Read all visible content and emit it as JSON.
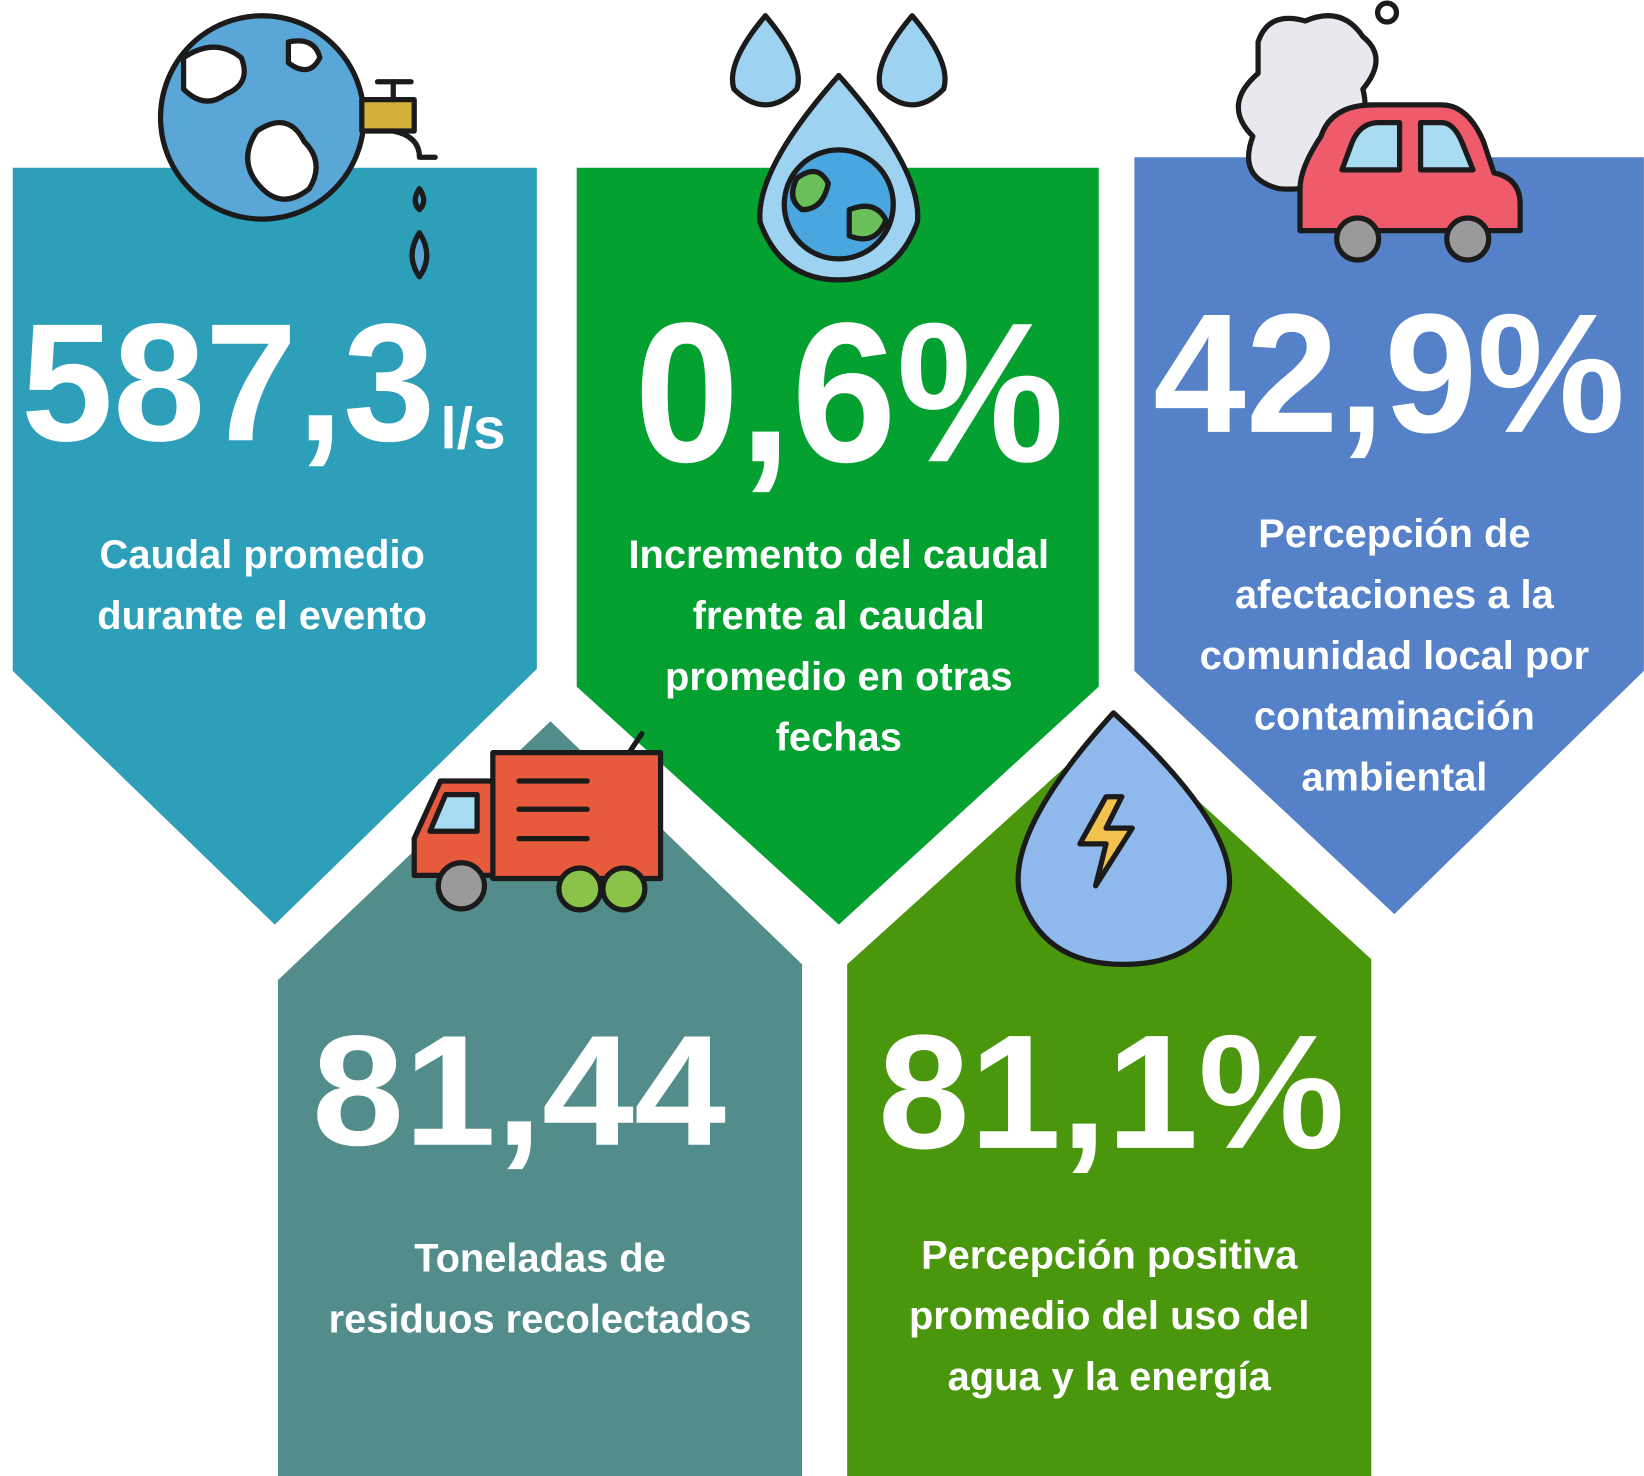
{
  "cards": [
    {
      "value": "587,3",
      "unit": "l/s",
      "description": [
        "Caudal promedio",
        "durante el evento"
      ]
    },
    {
      "value": "0,6%",
      "description": [
        "Incremento del caudal",
        "frente al caudal",
        "promedio en otras",
        "fechas"
      ]
    },
    {
      "value": "42,9%",
      "description": [
        "Percepción de",
        "afectaciones a la",
        "comunidad local por",
        "contaminación",
        "ambiental"
      ]
    },
    {
      "value": "81,44",
      "description": [
        "Toneladas de",
        "residuos recolectados"
      ]
    },
    {
      "value": "81,1%",
      "description": [
        "Percepción positiva",
        "promedio del uso del",
        "agua y la energía"
      ]
    }
  ]
}
